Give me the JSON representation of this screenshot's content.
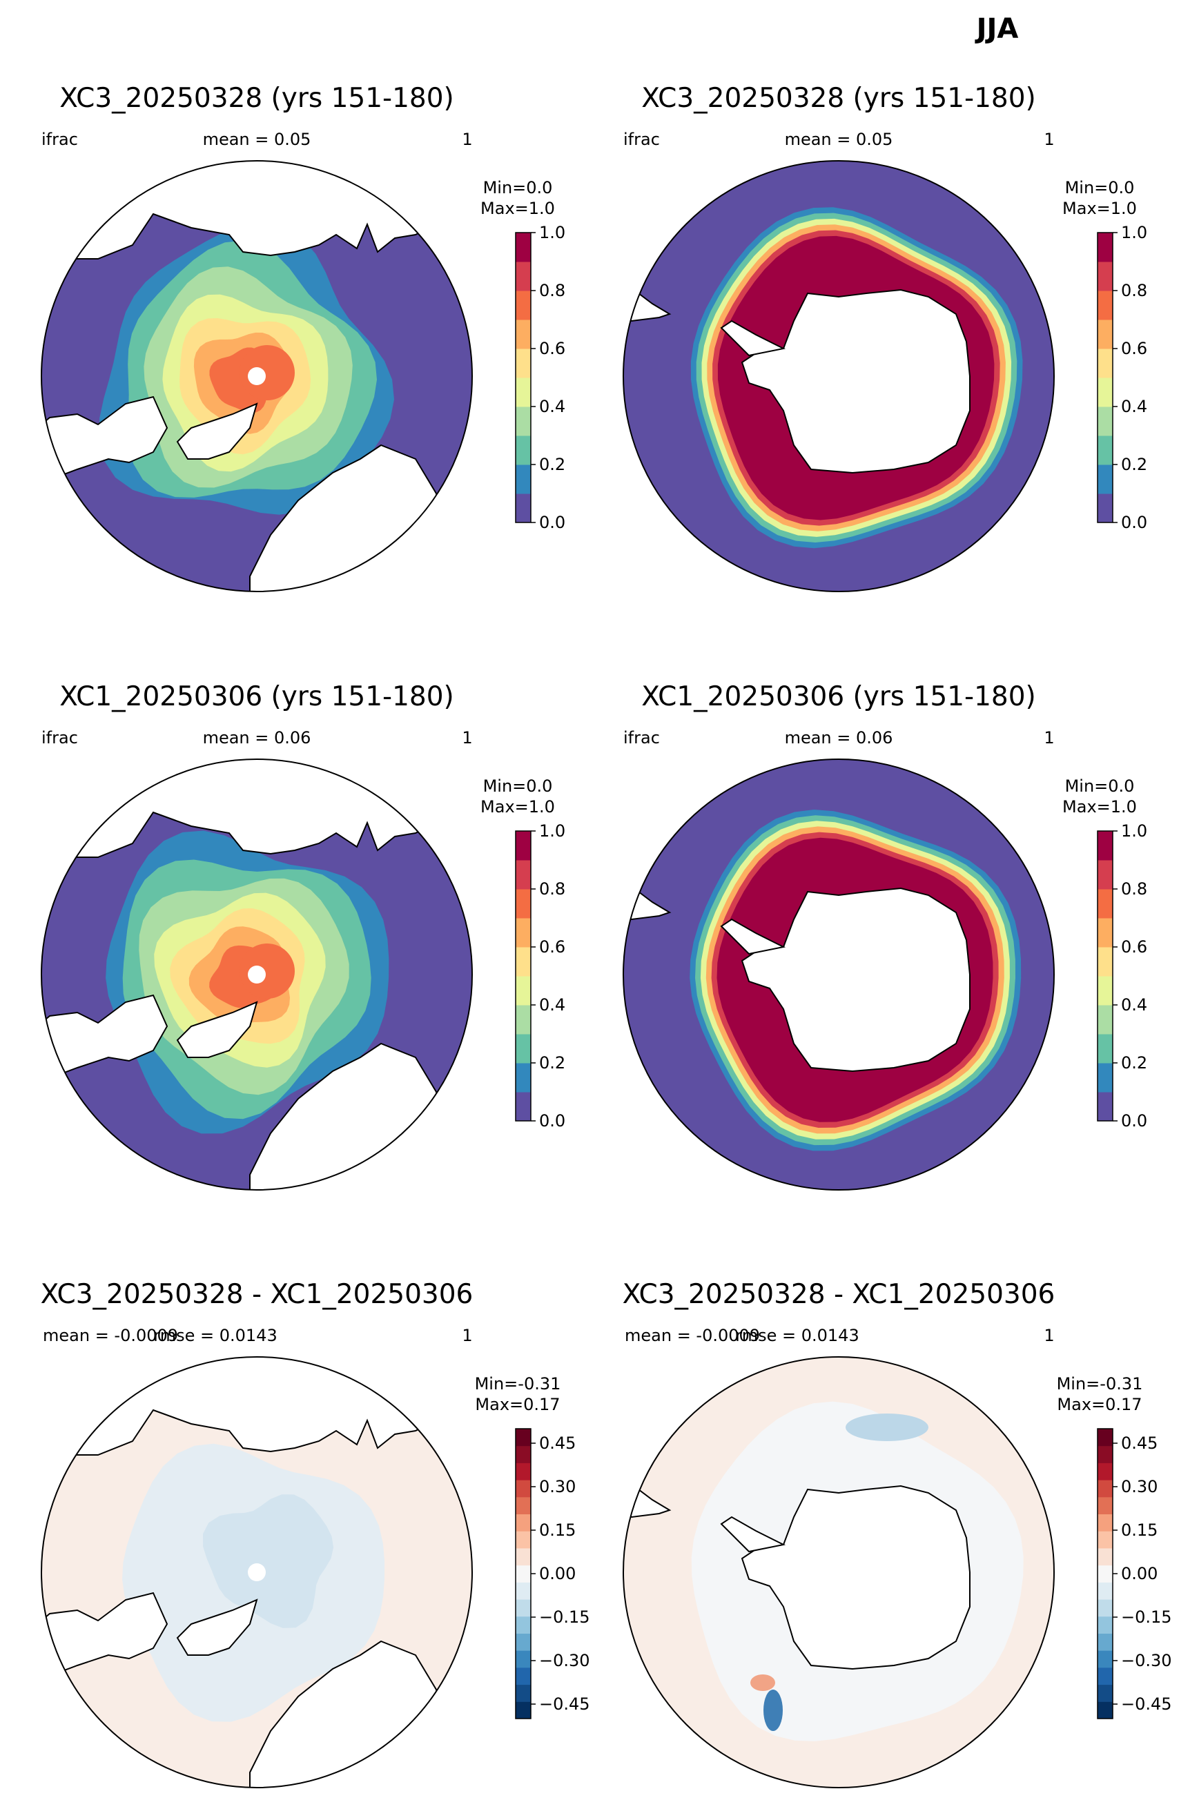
{
  "figure": {
    "title": "JJA"
  },
  "panels": [
    {
      "id": "p1",
      "hemisphere": "north",
      "kind": "field",
      "title": "XC3_20250328 (yrs 151-180)",
      "left_label": "ifrac",
      "center_label": "mean = 0.05",
      "right_label": "1",
      "minmax_line1": "Min=0.0",
      "minmax_line2": "Max=1.0"
    },
    {
      "id": "p2",
      "hemisphere": "south",
      "kind": "field",
      "title": "XC3_20250328 (yrs 151-180)",
      "left_label": "ifrac",
      "center_label": "mean = 0.05",
      "right_label": "1",
      "minmax_line1": "Min=0.0",
      "minmax_line2": "Max=1.0"
    },
    {
      "id": "p3",
      "hemisphere": "north",
      "kind": "field",
      "title": "XC1_20250306 (yrs 151-180)",
      "left_label": "ifrac",
      "center_label": "mean = 0.06",
      "right_label": "1",
      "minmax_line1": "Min=0.0",
      "minmax_line2": "Max=1.0"
    },
    {
      "id": "p4",
      "hemisphere": "south",
      "kind": "field",
      "title": "XC1_20250306 (yrs 151-180)",
      "left_label": "ifrac",
      "center_label": "mean = 0.06",
      "right_label": "1",
      "minmax_line1": "Min=0.0",
      "minmax_line2": "Max=1.0"
    },
    {
      "id": "p5",
      "hemisphere": "north",
      "kind": "diff",
      "title": "XC3_20250328 - XC1_20250306",
      "left_label": "mean = -0.0009",
      "center_label": "rmse = 0.0143",
      "right_label": "1",
      "minmax_line1": "Min=-0.31",
      "minmax_line2": "Max=0.17"
    },
    {
      "id": "p6",
      "hemisphere": "south",
      "kind": "diff",
      "title": "XC3_20250328 - XC1_20250306",
      "left_label": "mean = -0.0009",
      "center_label": "rmse = 0.0143",
      "right_label": "1",
      "minmax_line1": "Min=-0.31",
      "minmax_line2": "Max=0.17"
    }
  ],
  "colorbars": {
    "field": {
      "ticks": [
        "0.0",
        "0.2",
        "0.4",
        "0.6",
        "0.8",
        "1.0"
      ],
      "tick_values": [
        0,
        0.2,
        0.4,
        0.6,
        0.8,
        1.0
      ],
      "range": [
        0,
        1
      ],
      "colors": [
        "#5e4fa2",
        "#3288bd",
        "#66c2a5",
        "#abdda4",
        "#e6f598",
        "#fee08b",
        "#fdae61",
        "#f46d43",
        "#d53e4f",
        "#9e0142"
      ]
    },
    "diff": {
      "ticks": [
        "0.45",
        "0.30",
        "0.15",
        "0.00",
        "−0.15",
        "−0.30",
        "−0.45"
      ],
      "tick_values": [
        0.45,
        0.3,
        0.15,
        0,
        -0.15,
        -0.3,
        -0.45
      ],
      "range": [
        -0.5,
        0.5
      ],
      "colors": [
        "#053061",
        "#134c87",
        "#2166ac",
        "#3a87bd",
        "#67a9cf",
        "#93c5de",
        "#c0dcea",
        "#dfecf3",
        "#f7f7f7",
        "#f9e1d4",
        "#fbc3a6",
        "#f5a17e",
        "#e27055",
        "#d14a3f",
        "#b2182b",
        "#8a0c25",
        "#67001f"
      ]
    }
  },
  "colors": {
    "ocean_low": "#5e4fa2",
    "land": "#ffffff",
    "diff_background": "#f9ede6",
    "coast": "#000000"
  }
}
